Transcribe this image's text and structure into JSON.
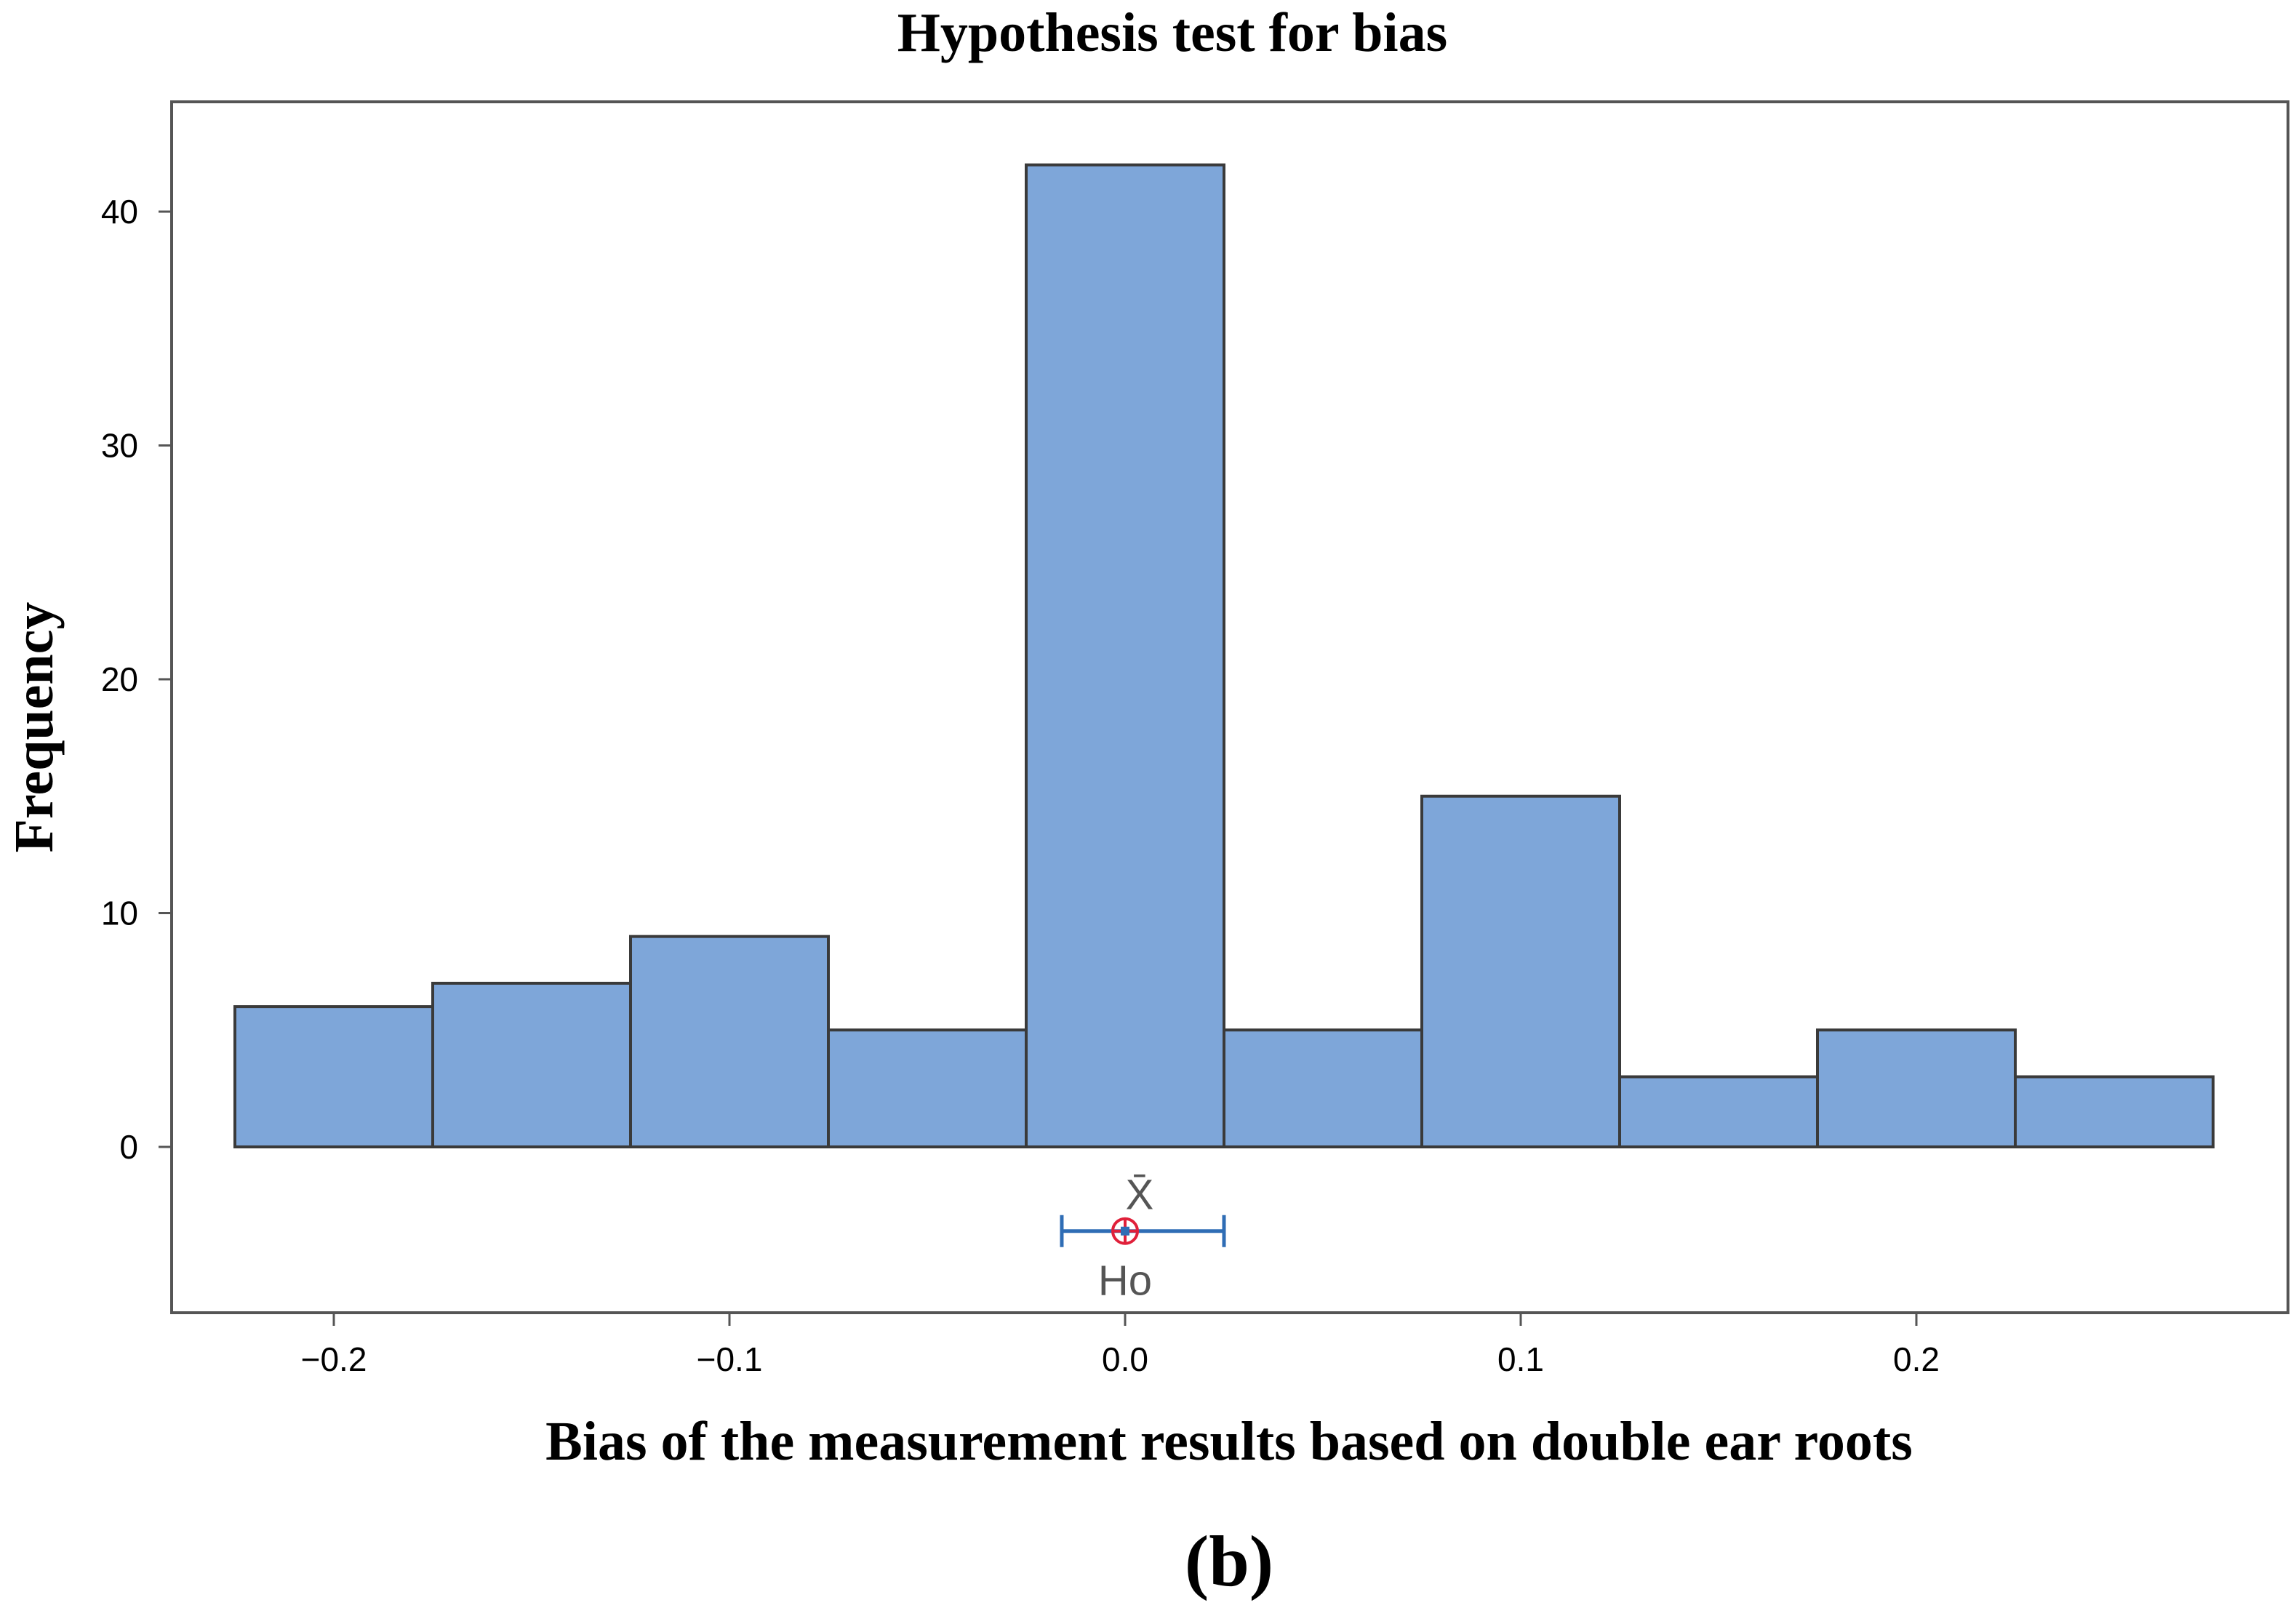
{
  "panel_label": "(b)",
  "chart_data": {
    "type": "bar",
    "subtype": "histogram",
    "title": "Hypothesis test for bias",
    "xlabel": "Bias of the measurement results based on double ear roots",
    "ylabel": "Frequency",
    "bins": [
      {
        "start": -0.225,
        "end": -0.175,
        "count": 6
      },
      {
        "start": -0.175,
        "end": -0.125,
        "count": 7
      },
      {
        "start": -0.125,
        "end": -0.075,
        "count": 9
      },
      {
        "start": -0.075,
        "end": -0.025,
        "count": 5
      },
      {
        "start": -0.025,
        "end": 0.025,
        "count": 42
      },
      {
        "start": 0.025,
        "end": 0.075,
        "count": 5
      },
      {
        "start": 0.075,
        "end": 0.125,
        "count": 15
      },
      {
        "start": 0.125,
        "end": 0.175,
        "count": 3
      },
      {
        "start": 0.175,
        "end": 0.225,
        "count": 5
      },
      {
        "start": 0.225,
        "end": 0.275,
        "count": 3
      }
    ],
    "xlim": [
      -0.26,
      0.285
    ],
    "ylim": [
      -7,
      45
    ],
    "xticks": [
      -0.2,
      -0.1,
      0.0,
      0.1,
      0.2
    ],
    "xtick_labels": [
      "−0.2",
      "−0.1",
      "0.0",
      "0.1",
      "0.2"
    ],
    "yticks": [
      0,
      10,
      20,
      30,
      40
    ],
    "ytick_labels": [
      "0",
      "10",
      "20",
      "30",
      "40"
    ],
    "mean_ci": {
      "label_mean": "X̄",
      "label_h0": "Ho",
      "mean": 0.0,
      "ci_low": -0.016,
      "ci_high": 0.025,
      "h0": 0.0,
      "y_level": -3.6
    },
    "colors": {
      "bar_fill": "#7EA6D9",
      "bar_stroke": "#3A3A3A",
      "ci_color": "#2F6DB5",
      "h0_color": "#E0203A",
      "frame": "#555555"
    }
  }
}
